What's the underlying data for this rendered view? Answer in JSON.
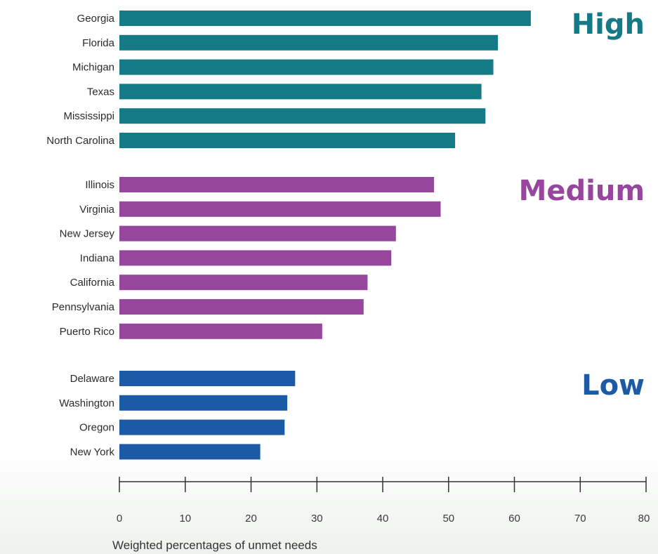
{
  "chart_data": {
    "type": "bar",
    "orientation": "horizontal",
    "xlabel": "Weighted percentages of unmet needs",
    "xlim": [
      0,
      80
    ],
    "x_ticks": [
      0,
      10,
      20,
      30,
      40,
      50,
      60,
      70,
      80
    ],
    "grid": false,
    "groups": [
      {
        "name": "High",
        "color": "#137a86",
        "categories": [
          "Georgia",
          "Florida",
          "Michigan",
          "Texas",
          "Mississippi",
          "North Carolina"
        ],
        "values": [
          62.5,
          57.5,
          56.8,
          55.0,
          55.6,
          51.0
        ]
      },
      {
        "name": "Medium",
        "color": "#96469d",
        "categories": [
          "Illinois",
          "Virginia",
          "New Jersey",
          "Indiana",
          "California",
          "Pennsylvania",
          "Puerto Rico"
        ],
        "values": [
          47.8,
          48.8,
          42.0,
          41.3,
          37.7,
          37.1,
          30.8
        ]
      },
      {
        "name": "Low",
        "color": "#1d5aa6",
        "categories": [
          "Delaware",
          "Washington",
          "Oregon",
          "New York"
        ],
        "values": [
          26.7,
          25.5,
          25.1,
          21.4
        ]
      }
    ]
  }
}
